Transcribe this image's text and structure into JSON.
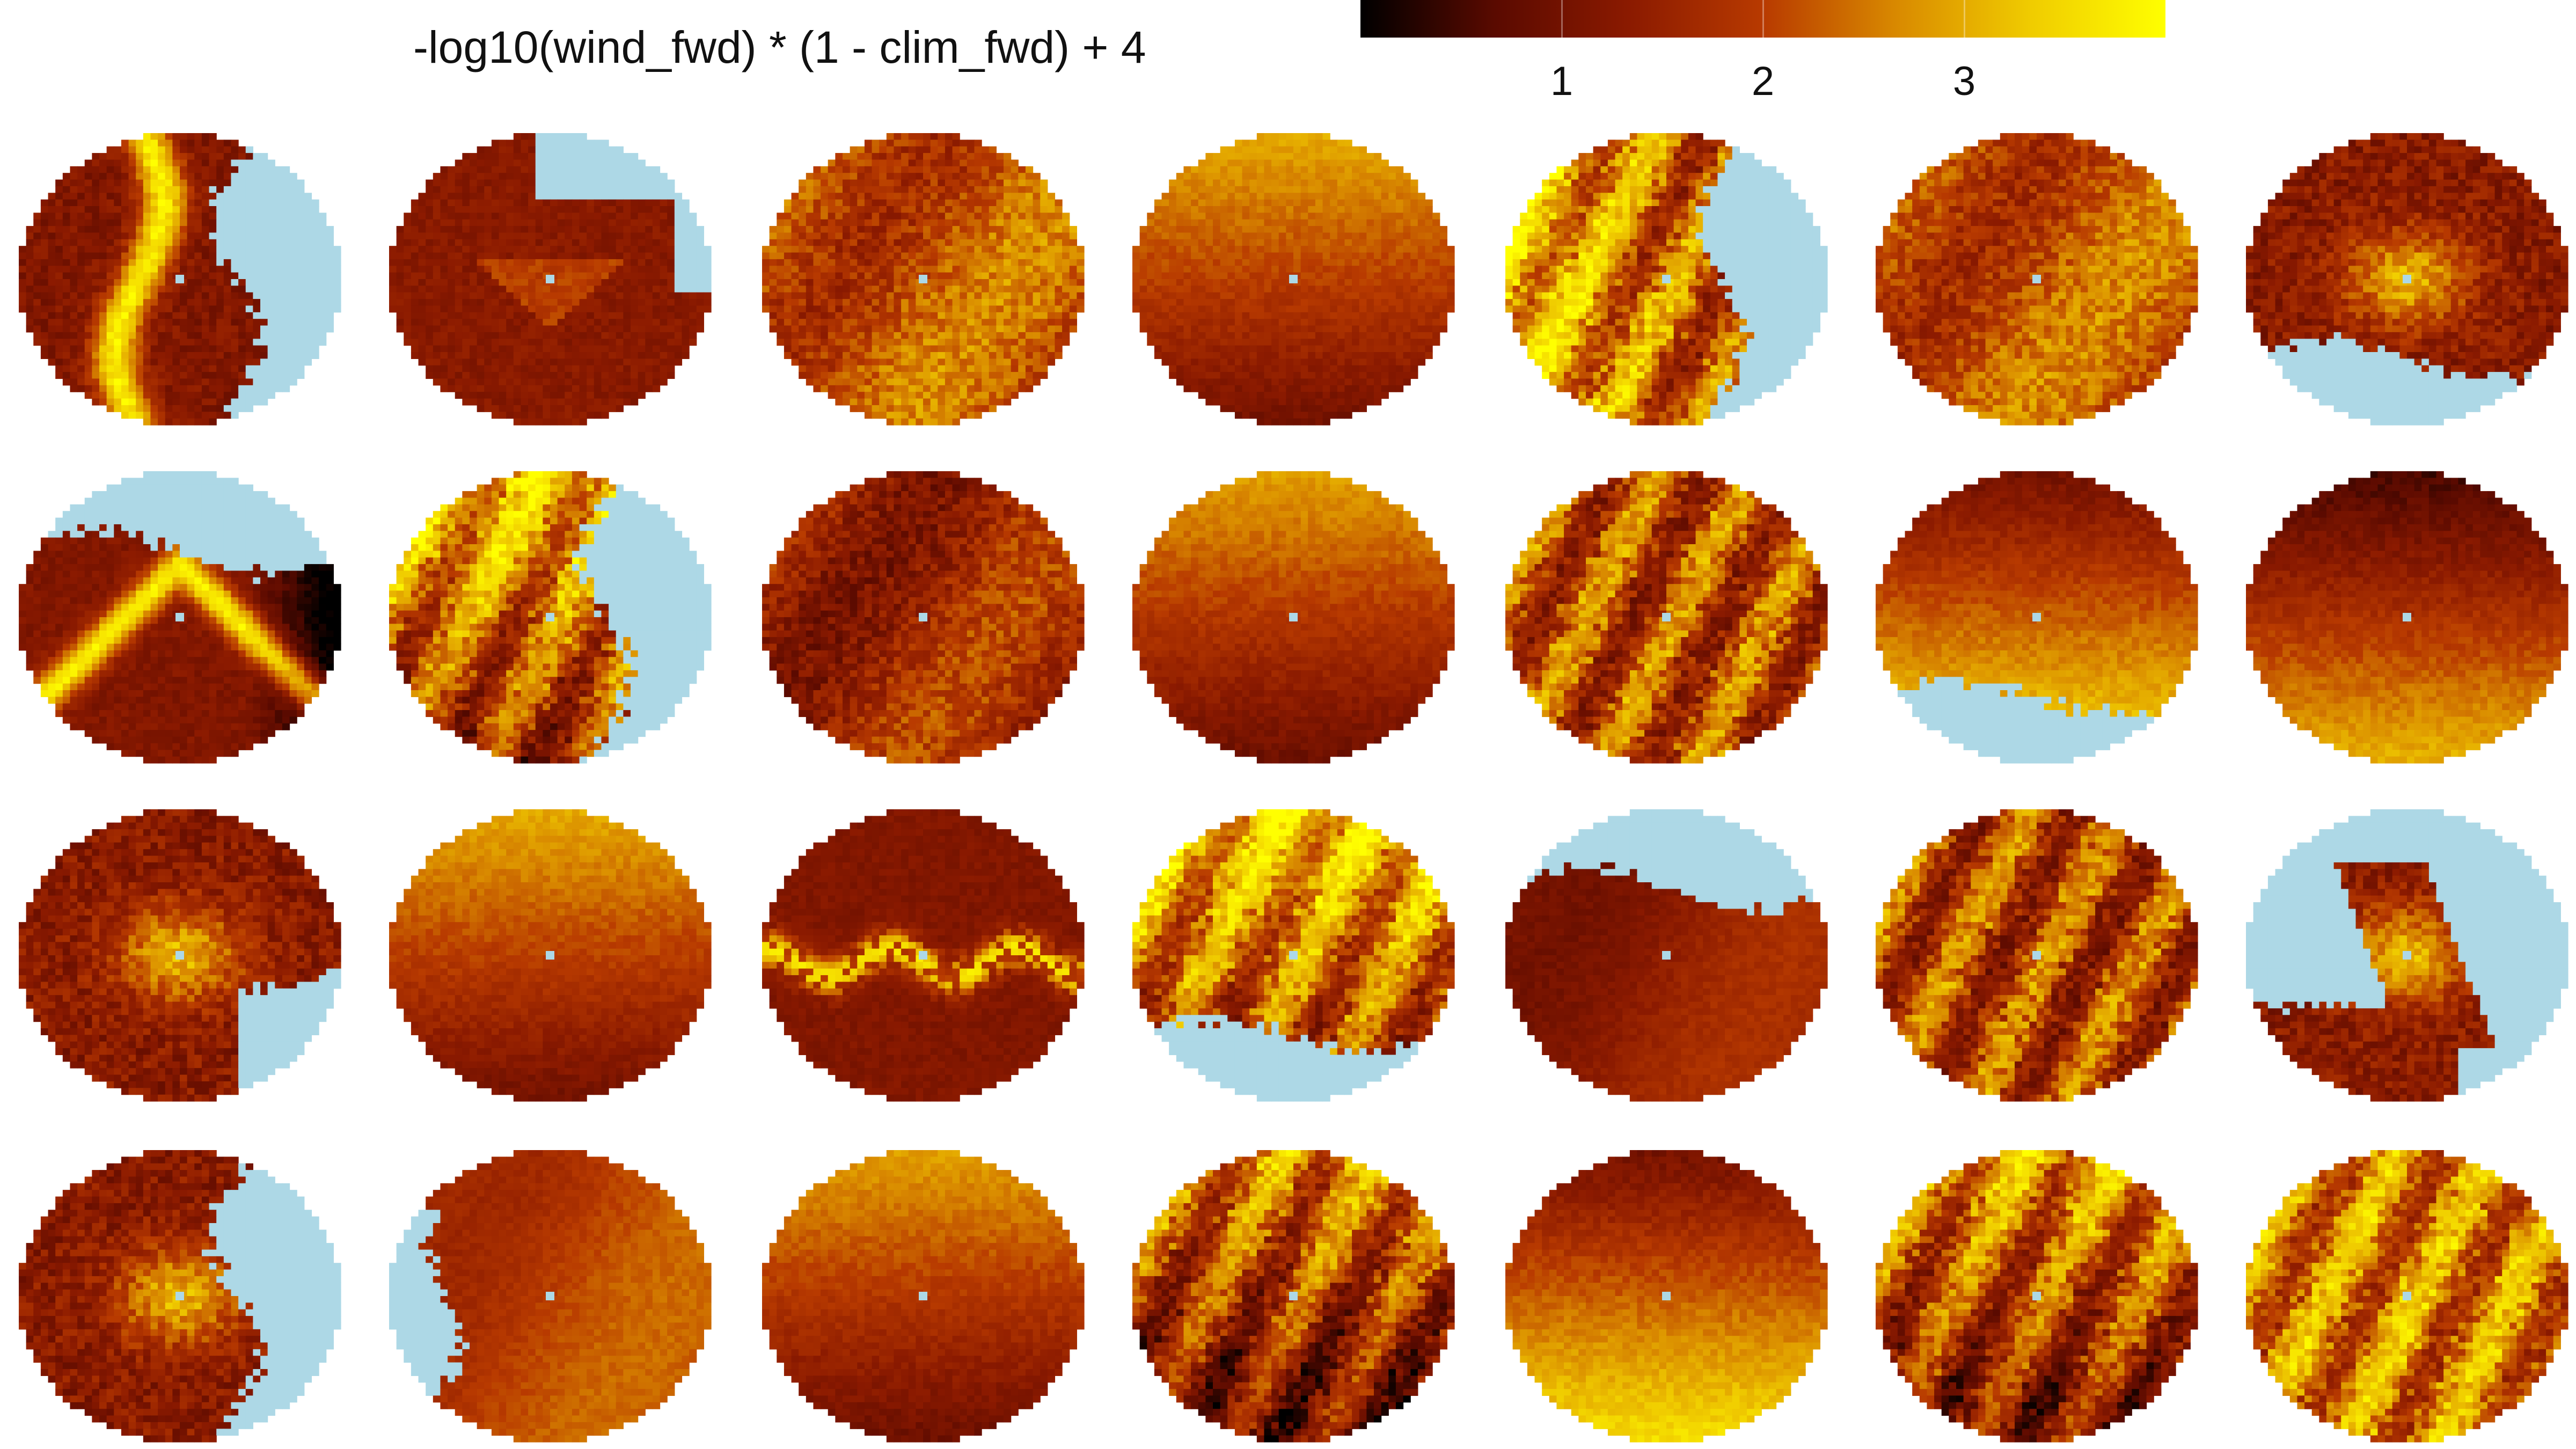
{
  "title": "-log10(wind_fwd) * (1 - clim_fwd) + 4",
  "chart_data": {
    "type": "heatmap",
    "title": "-log10(wind_fwd) * (1 - clim_fwd) + 4",
    "layout": {
      "rows": 4,
      "cols": 7
    },
    "colorbar": {
      "orientation": "horizontal",
      "placement": "top-right",
      "range": [
        0,
        4
      ],
      "ticks": [
        1,
        2,
        3
      ],
      "tick_labels": [
        "1",
        "2",
        "3"
      ],
      "colors": [
        "#000000",
        "#5a0a00",
        "#8b1a00",
        "#b83a00",
        "#d98a00",
        "#f0cc00",
        "#ffff00"
      ]
    },
    "missing_color": "#add8e6",
    "center_marker_color": "#add8e6",
    "panels": [
      {
        "row": 1,
        "col": 1,
        "mean_level": 1.6,
        "water": "right",
        "pattern": "vertical-ridge"
      },
      {
        "row": 1,
        "col": 2,
        "mean_level": 1.4,
        "water": "top-right",
        "pattern": "triangle"
      },
      {
        "row": 1,
        "col": 3,
        "mean_level": 2.2,
        "water": "none",
        "pattern": "diffuse"
      },
      {
        "row": 1,
        "col": 4,
        "mean_level": 2.0,
        "water": "none",
        "pattern": "smooth-top"
      },
      {
        "row": 1,
        "col": 5,
        "mean_level": 2.4,
        "water": "right",
        "pattern": "streaky-left"
      },
      {
        "row": 1,
        "col": 6,
        "mean_level": 2.2,
        "water": "none",
        "pattern": "diffuse"
      },
      {
        "row": 1,
        "col": 7,
        "mean_level": 1.4,
        "water": "bottom",
        "pattern": "central-patch"
      },
      {
        "row": 2,
        "col": 1,
        "mean_level": 1.8,
        "water": "top",
        "pattern": "w-ridge"
      },
      {
        "row": 2,
        "col": 2,
        "mean_level": 2.4,
        "water": "right",
        "pattern": "streaky-top"
      },
      {
        "row": 2,
        "col": 3,
        "mean_level": 1.6,
        "water": "none",
        "pattern": "diffuse"
      },
      {
        "row": 2,
        "col": 4,
        "mean_level": 1.9,
        "water": "none",
        "pattern": "smooth-top"
      },
      {
        "row": 2,
        "col": 5,
        "mean_level": 2.1,
        "water": "none",
        "pattern": "streaky"
      },
      {
        "row": 2,
        "col": 6,
        "mean_level": 2.3,
        "water": "bottom",
        "pattern": "gradient-down"
      },
      {
        "row": 2,
        "col": 7,
        "mean_level": 1.8,
        "water": "none",
        "pattern": "gradient-down"
      },
      {
        "row": 3,
        "col": 1,
        "mean_level": 2.0,
        "water": "bottom-right",
        "pattern": "central-patch"
      },
      {
        "row": 3,
        "col": 2,
        "mean_level": 2.0,
        "water": "none",
        "pattern": "smooth-top"
      },
      {
        "row": 3,
        "col": 3,
        "mean_level": 1.5,
        "water": "none",
        "pattern": "horizontal-ridge"
      },
      {
        "row": 3,
        "col": 4,
        "mean_level": 2.5,
        "water": "bottom",
        "pattern": "streaky-top"
      },
      {
        "row": 3,
        "col": 5,
        "mean_level": 1.4,
        "water": "top",
        "pattern": "smooth"
      },
      {
        "row": 3,
        "col": 6,
        "mean_level": 2.0,
        "water": "none",
        "pattern": "streaky"
      },
      {
        "row": 3,
        "col": 7,
        "mean_level": 1.6,
        "water": "large",
        "pattern": "central-patch"
      },
      {
        "row": 4,
        "col": 1,
        "mean_level": 1.4,
        "water": "right",
        "pattern": "central-patch"
      },
      {
        "row": 4,
        "col": 2,
        "mean_level": 2.0,
        "water": "left",
        "pattern": "smooth"
      },
      {
        "row": 4,
        "col": 3,
        "mean_level": 1.9,
        "water": "none",
        "pattern": "smooth-top"
      },
      {
        "row": 4,
        "col": 4,
        "mean_level": 1.8,
        "water": "none",
        "pattern": "streaky-top"
      },
      {
        "row": 4,
        "col": 5,
        "mean_level": 2.3,
        "water": "none",
        "pattern": "gradient-down"
      },
      {
        "row": 4,
        "col": 6,
        "mean_level": 2.0,
        "water": "none",
        "pattern": "streaky-top"
      },
      {
        "row": 4,
        "col": 7,
        "mean_level": 2.6,
        "water": "none",
        "pattern": "streaky"
      }
    ]
  }
}
